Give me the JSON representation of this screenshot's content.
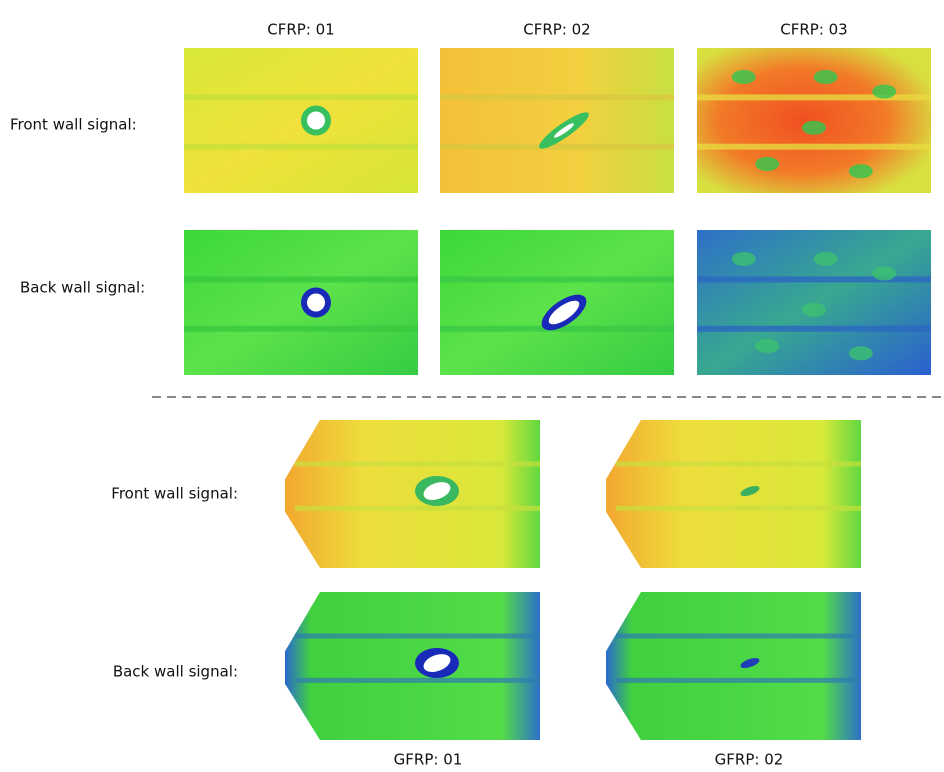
{
  "top": {
    "columns": [
      "CFRP: 01",
      "CFRP: 02",
      "CFRP: 03"
    ],
    "rows": [
      "Front wall signal:",
      "Back wall signal:"
    ]
  },
  "bottom": {
    "columns": [
      "GFRP: 01",
      "GFRP: 02"
    ],
    "rows": [
      "Front wall signal:",
      "Back wall signal:"
    ]
  }
}
